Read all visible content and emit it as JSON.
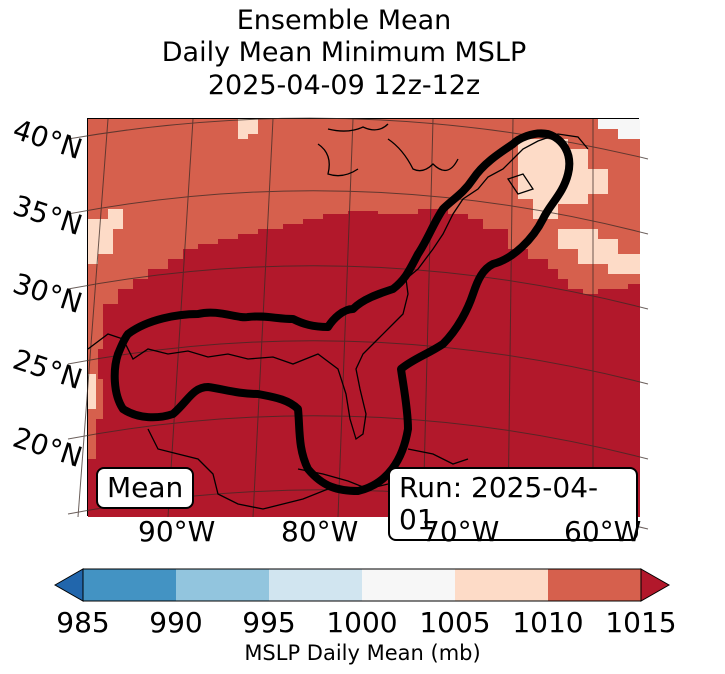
{
  "title": {
    "line1": "Ensemble Mean",
    "line2": "Daily Mean Minimum MSLP",
    "line3": "2025-04-09 12z-12z"
  },
  "map": {
    "lat_labels": [
      "40°N",
      "35°N",
      "30°N",
      "25°N",
      "20°N"
    ],
    "lon_labels": [
      "90°W",
      "80°W",
      "70°W",
      "60°W"
    ],
    "mean_box": "Mean",
    "run_box": "Run: 2025-04-01"
  },
  "colorbar": {
    "ticks": [
      "985",
      "990",
      "995",
      "1000",
      "1005",
      "1010",
      "1015"
    ],
    "label": "MSLP Daily Mean (mb)",
    "colors": [
      "#2166ac",
      "#4393c3",
      "#92c5de",
      "#d1e5f0",
      "#f7f7f7",
      "#fddbc7",
      "#d6604d",
      "#b2182b"
    ]
  }
}
